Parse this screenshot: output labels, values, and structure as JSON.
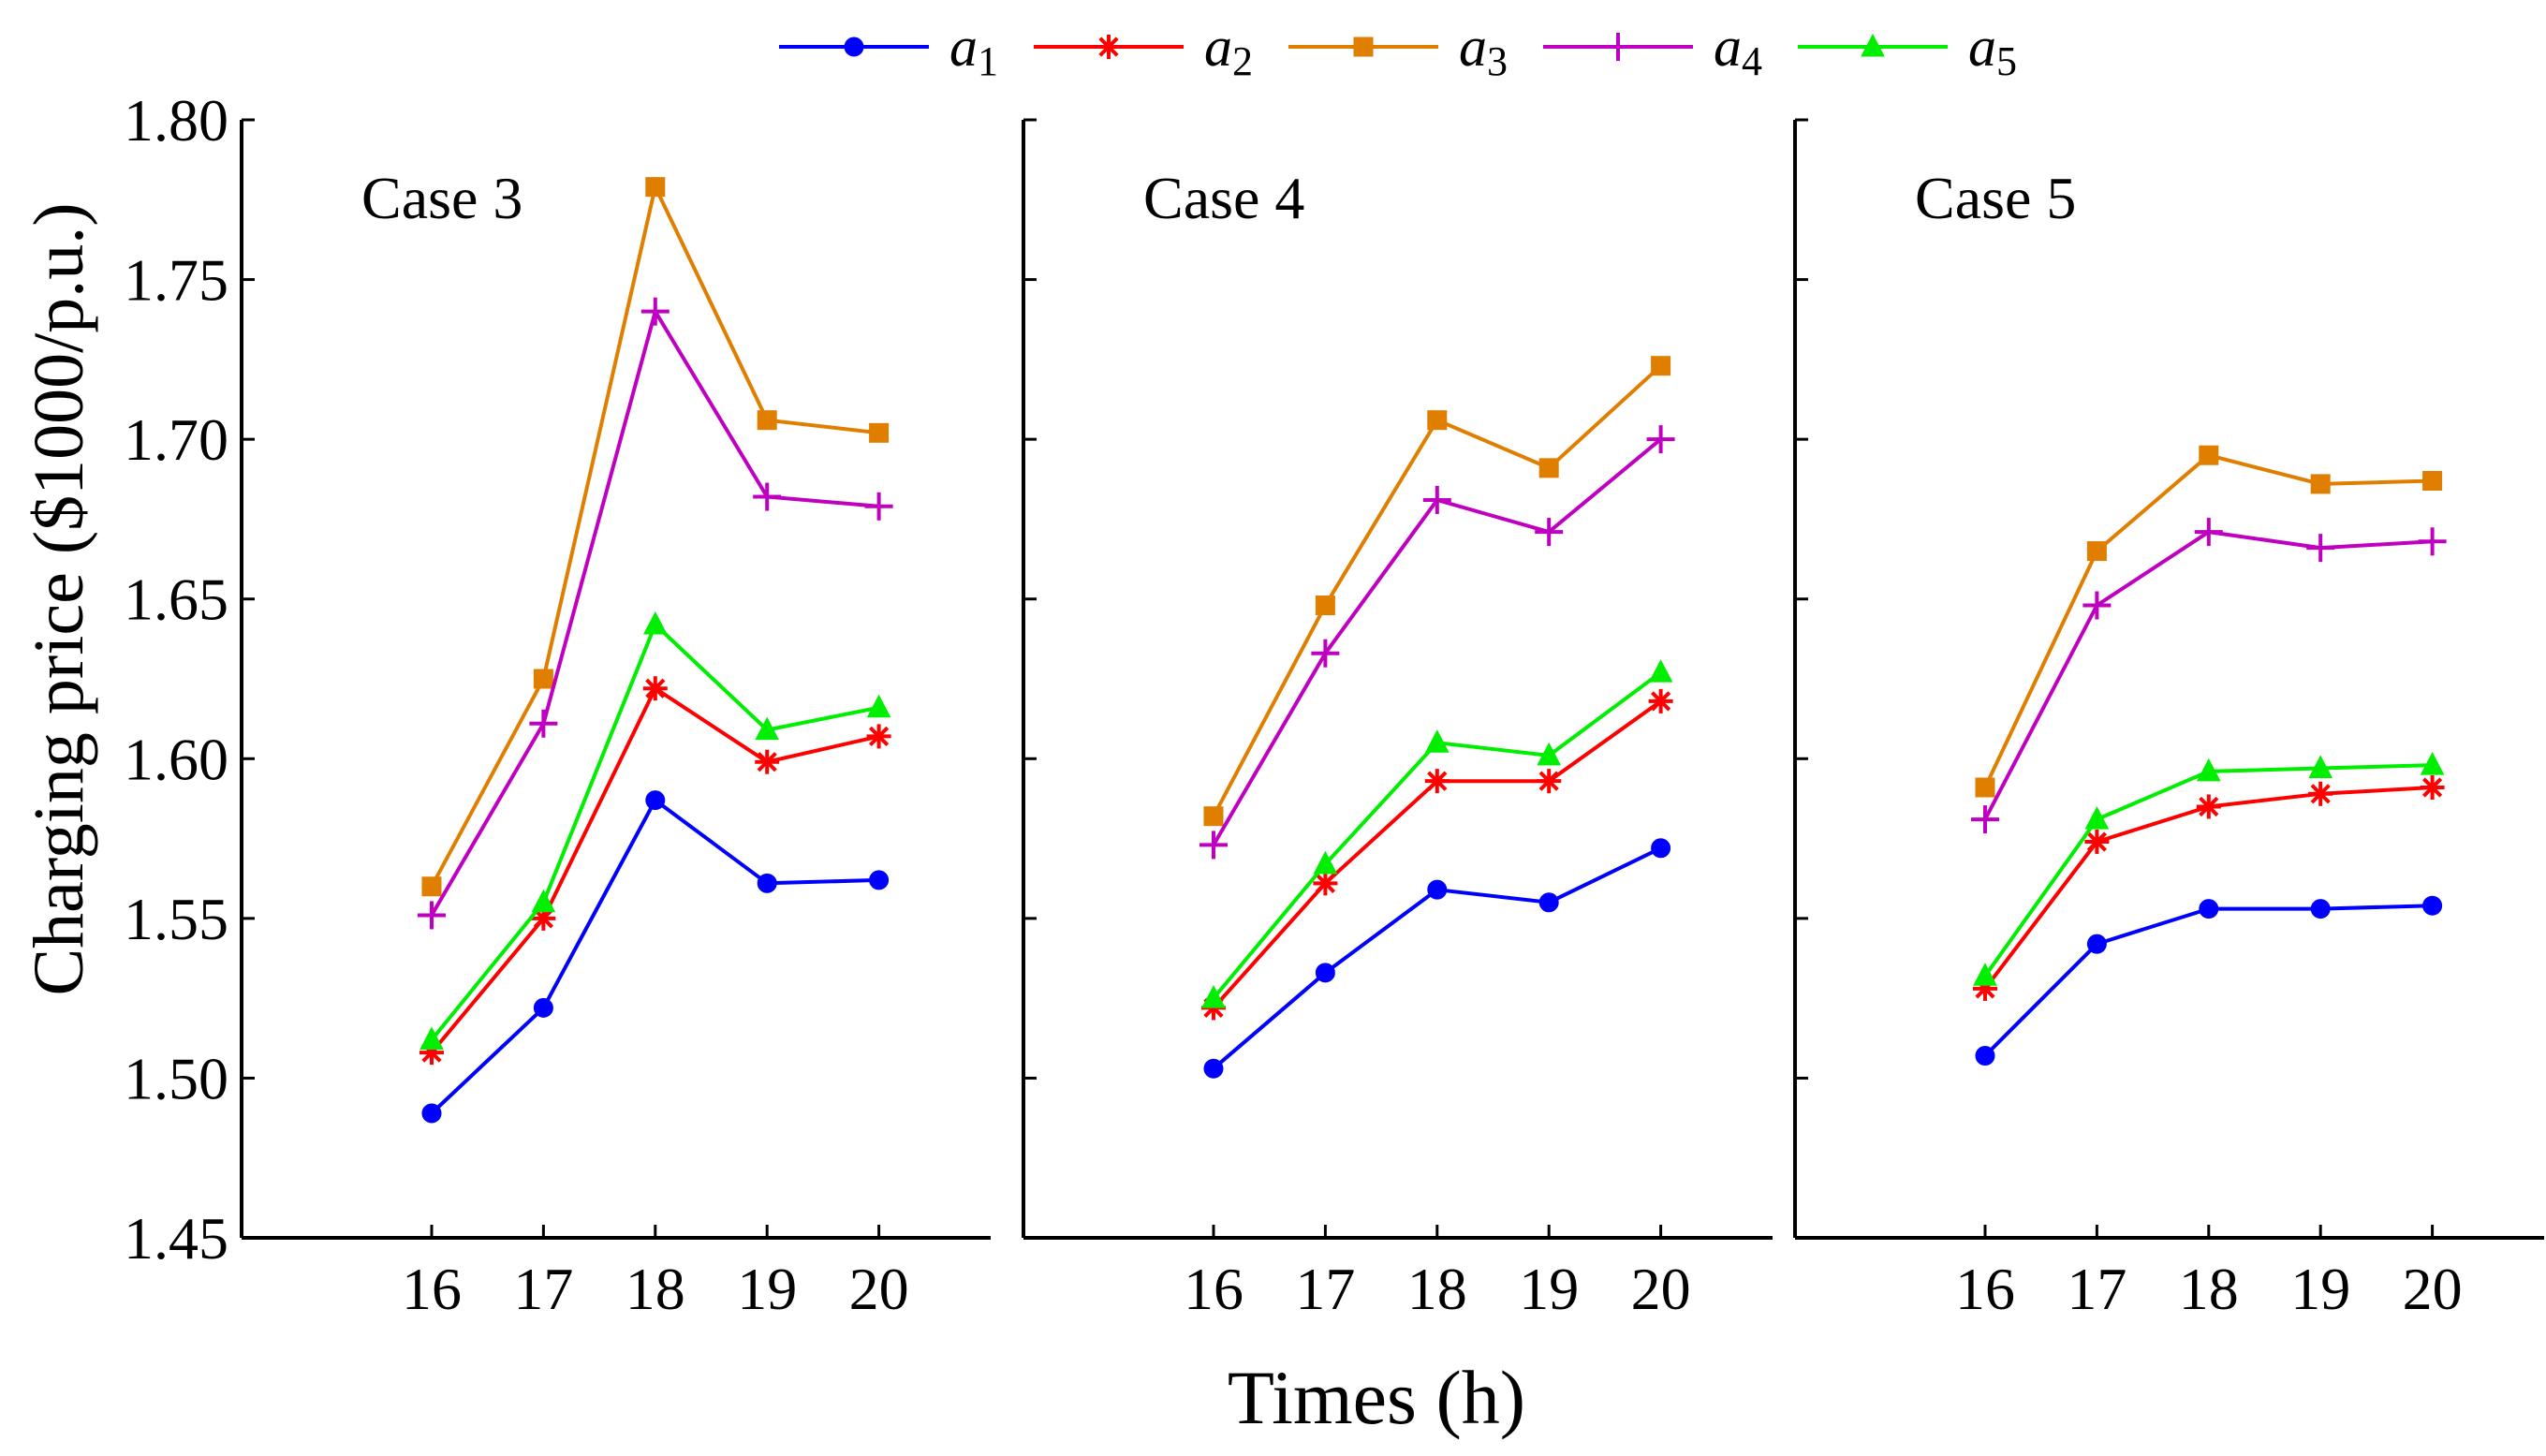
{
  "chart_data": {
    "type": "line",
    "xlabel": "Times (h)",
    "ylabel": "Charging price ($1000/p.u.)",
    "ylim": [
      1.45,
      1.8
    ],
    "yticks": [
      "1.45",
      "1.50",
      "1.55",
      "1.60",
      "1.65",
      "1.70",
      "1.75",
      "1.80"
    ],
    "x": [
      16,
      17,
      18,
      19,
      20
    ],
    "xlim": [
      14.3,
      21.0
    ],
    "grid": false,
    "legend": {
      "placement": "top",
      "entries": [
        {
          "name": "a",
          "sub": "1",
          "color": "#0000ff",
          "marker": "circle"
        },
        {
          "name": "a",
          "sub": "2",
          "color": "#ff0000",
          "marker": "asterisk"
        },
        {
          "name": "a",
          "sub": "3",
          "color": "#e07e00",
          "marker": "square"
        },
        {
          "name": "a",
          "sub": "4",
          "color": "#c000c0",
          "marker": "plus"
        },
        {
          "name": "a",
          "sub": "5",
          "color": "#00ee00",
          "marker": "triangle"
        }
      ]
    },
    "panels": [
      {
        "title": "Case 3",
        "series": [
          {
            "name": "a1",
            "values": [
              1.489,
              1.522,
              1.587,
              1.561,
              1.562
            ]
          },
          {
            "name": "a2",
            "values": [
              1.508,
              1.55,
              1.622,
              1.599,
              1.607
            ]
          },
          {
            "name": "a3",
            "values": [
              1.56,
              1.625,
              1.779,
              1.706,
              1.702
            ]
          },
          {
            "name": "a4",
            "values": [
              1.551,
              1.611,
              1.74,
              1.682,
              1.679
            ]
          },
          {
            "name": "a5",
            "values": [
              1.512,
              1.555,
              1.642,
              1.609,
              1.616
            ]
          }
        ]
      },
      {
        "title": "Case 4",
        "series": [
          {
            "name": "a1",
            "values": [
              1.503,
              1.533,
              1.559,
              1.555,
              1.572
            ]
          },
          {
            "name": "a2",
            "values": [
              1.522,
              1.561,
              1.593,
              1.593,
              1.618
            ]
          },
          {
            "name": "a3",
            "values": [
              1.582,
              1.648,
              1.706,
              1.691,
              1.723
            ]
          },
          {
            "name": "a4",
            "values": [
              1.573,
              1.633,
              1.681,
              1.671,
              1.7
            ]
          },
          {
            "name": "a5",
            "values": [
              1.525,
              1.567,
              1.605,
              1.601,
              1.627
            ]
          }
        ]
      },
      {
        "title": "Case 5",
        "series": [
          {
            "name": "a1",
            "values": [
              1.507,
              1.542,
              1.553,
              1.553,
              1.554
            ]
          },
          {
            "name": "a2",
            "values": [
              1.528,
              1.574,
              1.585,
              1.589,
              1.591
            ]
          },
          {
            "name": "a3",
            "values": [
              1.591,
              1.665,
              1.695,
              1.686,
              1.687
            ]
          },
          {
            "name": "a4",
            "values": [
              1.581,
              1.648,
              1.671,
              1.666,
              1.668
            ]
          },
          {
            "name": "a5",
            "values": [
              1.532,
              1.581,
              1.596,
              1.597,
              1.598
            ]
          }
        ]
      }
    ]
  }
}
